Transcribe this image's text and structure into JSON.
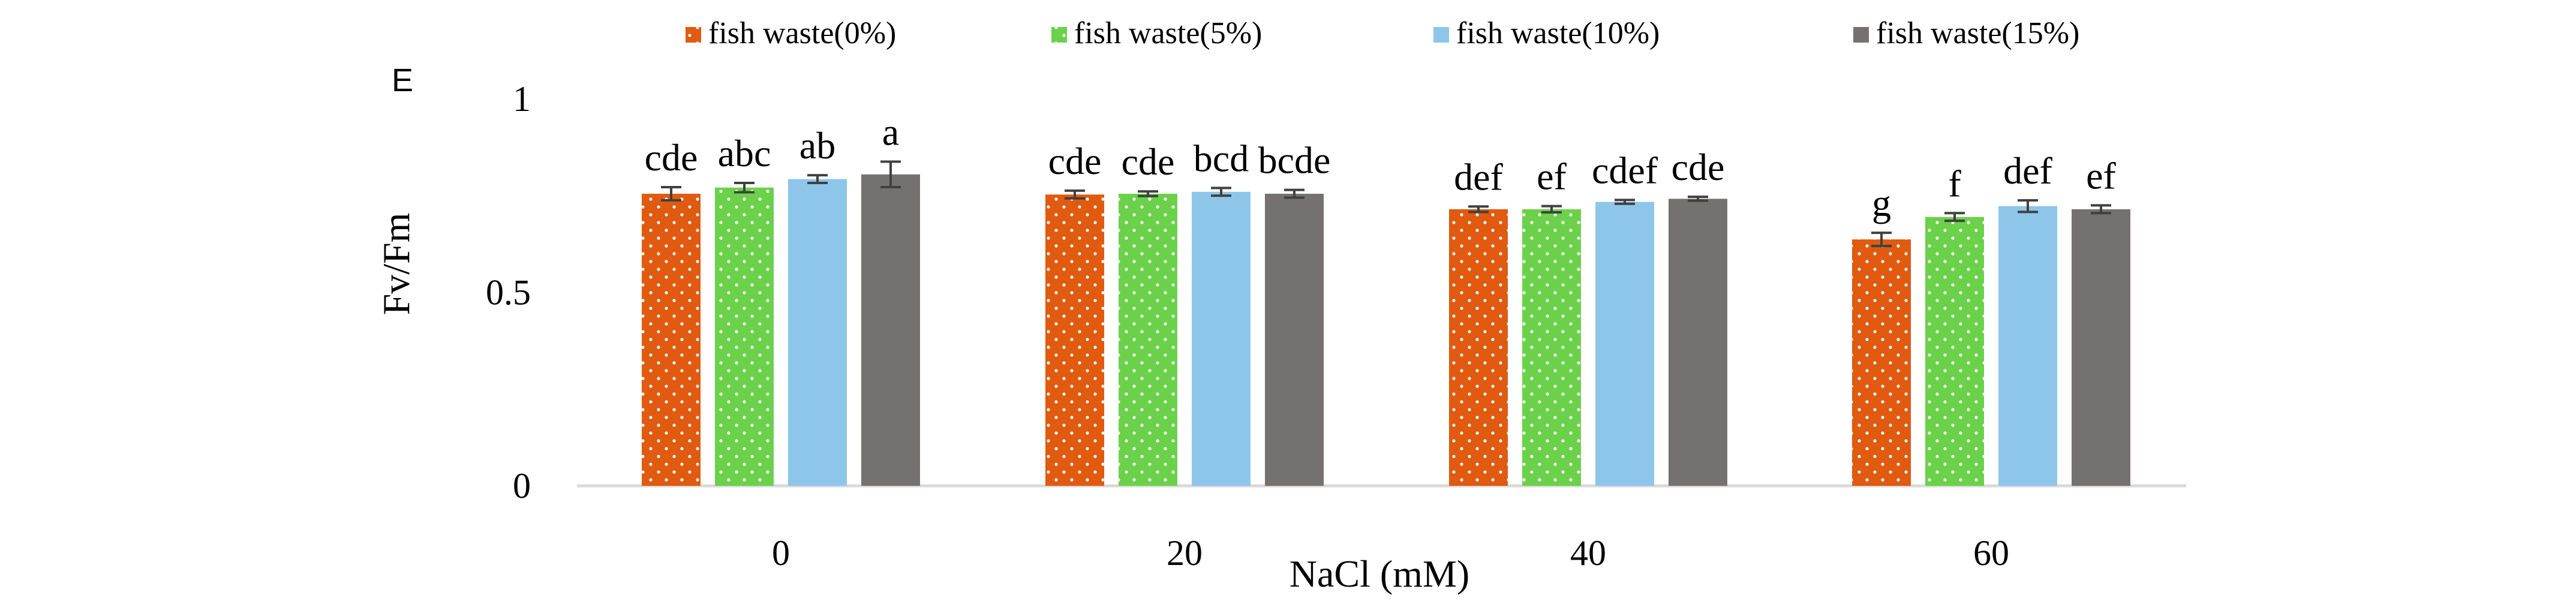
{
  "chart_data": {
    "type": "bar",
    "panel_label": "E",
    "title": "",
    "xlabel": "NaCl (mM)",
    "ylabel": "Fv/Fm",
    "ylim": [
      0,
      1
    ],
    "y_ticks": [
      0,
      0.5,
      1
    ],
    "y_tick_labels": [
      "0",
      "0.5",
      "1"
    ],
    "grid": false,
    "legend_position": "top",
    "categories": [
      "0",
      "20",
      "40",
      "60"
    ],
    "series": [
      {
        "name": "fish waste(0%)",
        "color": "#E05A10",
        "pattern": "dots",
        "values": [
          0.755,
          0.753,
          0.715,
          0.637
        ],
        "errors": [
          0.017,
          0.01,
          0.007,
          0.017
        ],
        "letters": [
          "cde",
          "cde",
          "def",
          "g"
        ]
      },
      {
        "name": "fish waste(5%)",
        "color": "#6BD14A",
        "pattern": "dots",
        "values": [
          0.771,
          0.755,
          0.715,
          0.695
        ],
        "errors": [
          0.012,
          0.006,
          0.008,
          0.01
        ],
        "letters": [
          "abc",
          "cde",
          "ef",
          "f"
        ]
      },
      {
        "name": "fish waste(10%)",
        "color": "#8EC6EA",
        "pattern": "solid",
        "values": [
          0.793,
          0.76,
          0.734,
          0.723
        ],
        "errors": [
          0.01,
          0.01,
          0.005,
          0.015
        ],
        "letters": [
          "ab",
          "bcd",
          "cdef",
          "def"
        ]
      },
      {
        "name": "fish waste(15%)",
        "color": "#767171",
        "pattern": "solid",
        "values": [
          0.805,
          0.755,
          0.742,
          0.715
        ],
        "errors": [
          0.033,
          0.01,
          0.005,
          0.01
        ],
        "letters": [
          "a",
          "bcde",
          "cde",
          "ef"
        ]
      }
    ]
  }
}
